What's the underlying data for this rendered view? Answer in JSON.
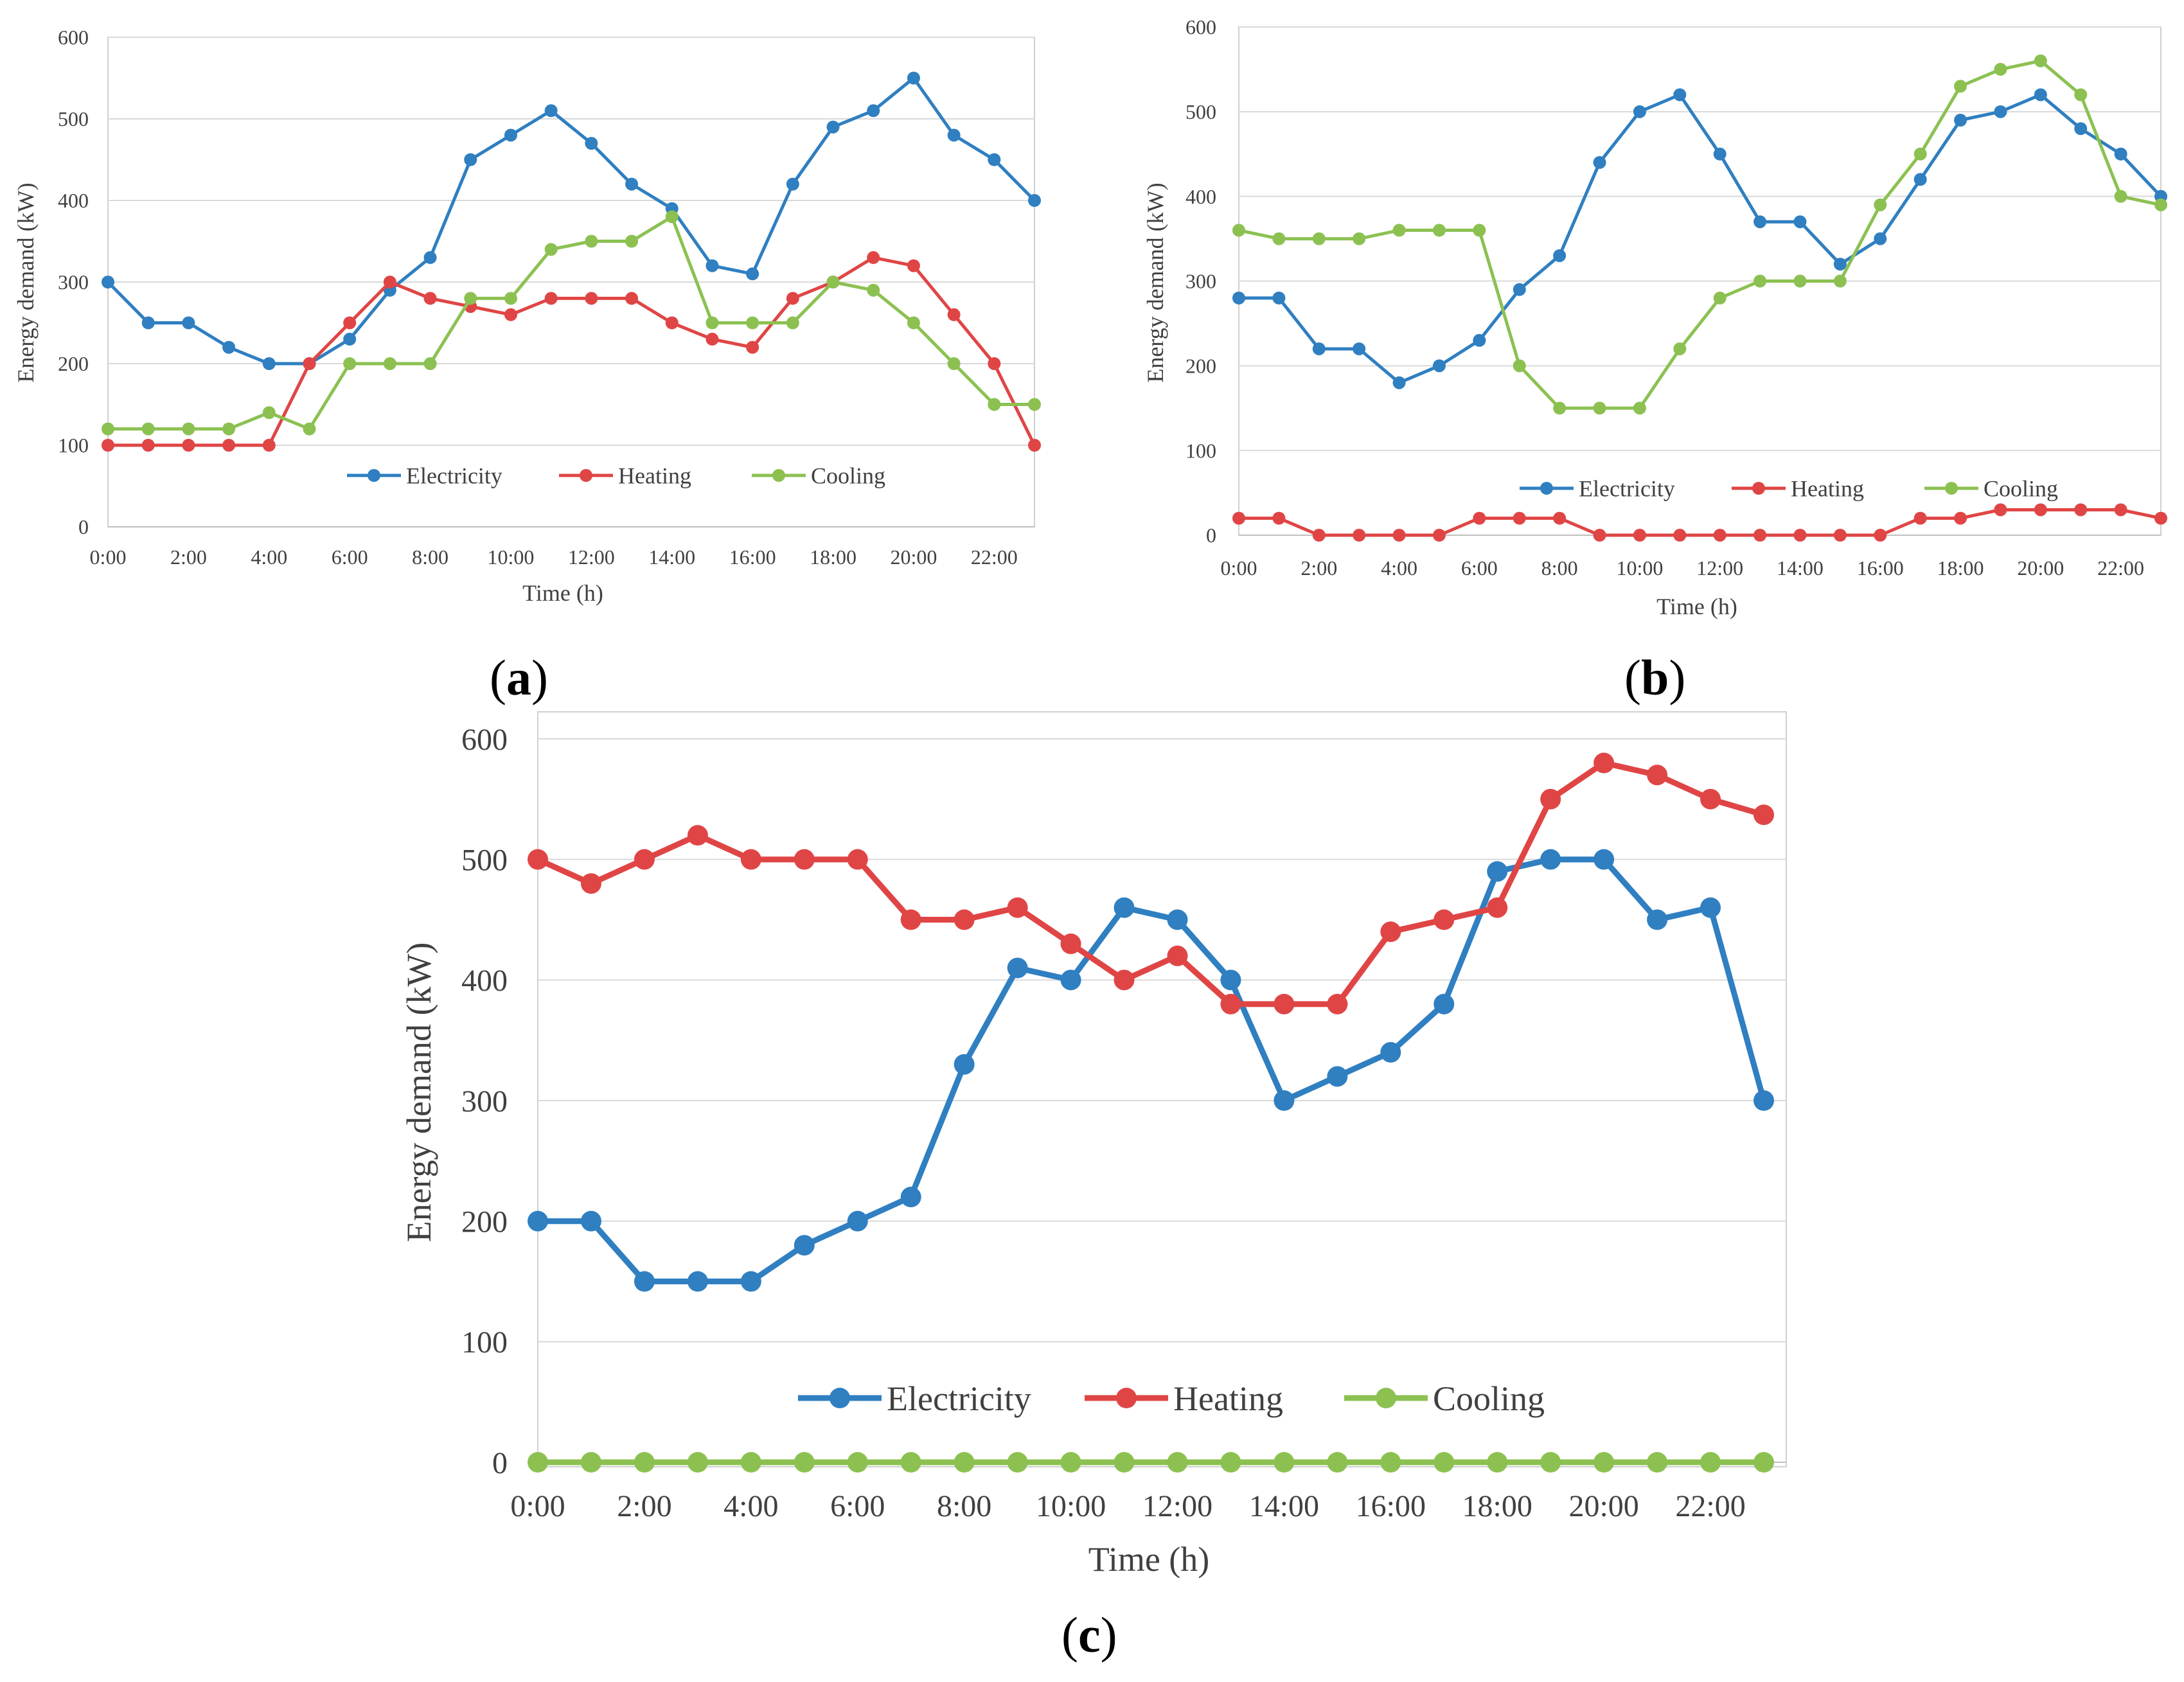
{
  "chart_data": [
    {
      "id": "a",
      "type": "line",
      "caption_letter": "a",
      "xlabel": "Time (h)",
      "ylabel": "Energy demand (kW)",
      "ylim": [
        0,
        600
      ],
      "yticks": [
        0,
        100,
        200,
        300,
        400,
        500,
        600
      ],
      "xtick_labels": [
        "0:00",
        "2:00",
        "4:00",
        "6:00",
        "8:00",
        "10:00",
        "12:00",
        "14:00",
        "16:00",
        "18:00",
        "20:00",
        "22:00"
      ],
      "x": [
        0,
        1,
        2,
        3,
        4,
        5,
        6,
        7,
        8,
        9,
        10,
        11,
        12,
        13,
        14,
        15,
        16,
        17,
        18,
        19,
        20,
        21,
        22,
        23
      ],
      "legend_position": "inside-bottom-center",
      "series": [
        {
          "name": "Electricity",
          "color": "#2f7fc1",
          "values": [
            300,
            250,
            250,
            220,
            200,
            200,
            230,
            290,
            330,
            450,
            480,
            510,
            470,
            420,
            390,
            320,
            310,
            420,
            490,
            510,
            550,
            480,
            450,
            400
          ]
        },
        {
          "name": "Heating",
          "color": "#e04545",
          "values": [
            100,
            100,
            100,
            100,
            100,
            200,
            250,
            300,
            280,
            270,
            260,
            280,
            280,
            280,
            250,
            230,
            220,
            280,
            300,
            330,
            320,
            260,
            200,
            100
          ]
        },
        {
          "name": "Cooling",
          "color": "#8cc152",
          "values": [
            120,
            120,
            120,
            120,
            140,
            120,
            200,
            200,
            200,
            280,
            280,
            340,
            350,
            350,
            380,
            250,
            250,
            250,
            300,
            290,
            250,
            200,
            150,
            150
          ]
        }
      ]
    },
    {
      "id": "b",
      "type": "line",
      "caption_letter": "b",
      "xlabel": "Time (h)",
      "ylabel": "Energy demand (kW)",
      "ylim": [
        0,
        600
      ],
      "yticks": [
        0,
        100,
        200,
        300,
        400,
        500,
        600
      ],
      "xtick_labels": [
        "0:00",
        "2:00",
        "4:00",
        "6:00",
        "8:00",
        "10:00",
        "12:00",
        "14:00",
        "16:00",
        "18:00",
        "20:00",
        "22:00"
      ],
      "x": [
        0,
        1,
        2,
        3,
        4,
        5,
        6,
        7,
        8,
        9,
        10,
        11,
        12,
        13,
        14,
        15,
        16,
        17,
        18,
        19,
        20,
        21,
        22,
        23
      ],
      "legend_position": "inside-bottom-center",
      "series": [
        {
          "name": "Electricity",
          "color": "#2f7fc1",
          "values": [
            280,
            280,
            220,
            220,
            180,
            200,
            230,
            290,
            330,
            440,
            500,
            520,
            450,
            370,
            370,
            320,
            350,
            420,
            490,
            500,
            520,
            480,
            450,
            400
          ]
        },
        {
          "name": "Heating",
          "color": "#e04545",
          "values": [
            20,
            20,
            0,
            0,
            0,
            0,
            20,
            20,
            20,
            0,
            0,
            0,
            0,
            0,
            0,
            0,
            0,
            20,
            20,
            30,
            30,
            30,
            30,
            20
          ]
        },
        {
          "name": "Cooling",
          "color": "#8cc152",
          "values": [
            360,
            350,
            350,
            350,
            360,
            360,
            360,
            200,
            150,
            150,
            150,
            220,
            280,
            300,
            300,
            300,
            390,
            450,
            530,
            550,
            560,
            520,
            400,
            390
          ]
        }
      ]
    },
    {
      "id": "c",
      "type": "line",
      "caption_letter": "c",
      "xlabel": "Time (h)",
      "ylabel": "Energy demand (kW)",
      "ylim": [
        0,
        600
      ],
      "yticks": [
        0,
        100,
        200,
        300,
        400,
        500,
        600
      ],
      "xtick_labels": [
        "0:00",
        "2:00",
        "4:00",
        "6:00",
        "8:00",
        "10:00",
        "12:00",
        "14:00",
        "16:00",
        "18:00",
        "20:00",
        "22:00"
      ],
      "x": [
        0,
        1,
        2,
        3,
        4,
        5,
        6,
        7,
        8,
        9,
        10,
        11,
        12,
        13,
        14,
        15,
        16,
        17,
        18,
        19,
        20,
        21,
        22,
        23
      ],
      "legend_position": "inside-bottom-center",
      "series": [
        {
          "name": "Electricity",
          "color": "#2f7fc1",
          "values": [
            200,
            200,
            150,
            150,
            150,
            180,
            200,
            220,
            330,
            410,
            400,
            460,
            450,
            400,
            300,
            320,
            340,
            380,
            490,
            500,
            500,
            450,
            460,
            300
          ]
        },
        {
          "name": "Heating",
          "color": "#e04545",
          "values": [
            500,
            480,
            500,
            520,
            500,
            500,
            500,
            450,
            450,
            460,
            430,
            400,
            420,
            380,
            380,
            380,
            440,
            450,
            460,
            550,
            580,
            570,
            550,
            537
          ]
        },
        {
          "name": "Cooling",
          "color": "#8cc152",
          "values": [
            0,
            0,
            0,
            0,
            0,
            0,
            0,
            0,
            0,
            0,
            0,
            0,
            0,
            0,
            0,
            0,
            0,
            0,
            0,
            0,
            0,
            0,
            0,
            0
          ]
        }
      ]
    }
  ]
}
